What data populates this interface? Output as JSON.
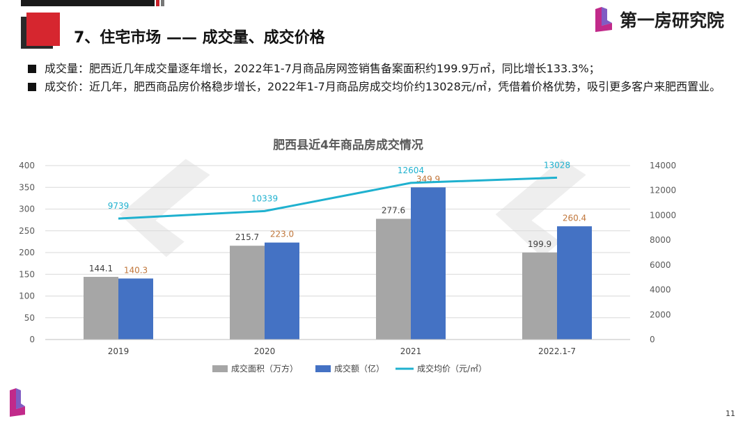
{
  "header": {
    "title": "7、住宅市场 —— 成交量、成交价格",
    "brand_name": "第一房研究院"
  },
  "bullets": [
    {
      "text": "成交量：肥西近几年成交量逐年增长，2022年1-7月商品房网签销售备案面积约199.9万㎡，同比增长133.3%；"
    },
    {
      "text": "成交价：近几年，肥西商品房价格稳步增长，2022年1-7月商品房成交均价约13028元/㎡，凭借着价格优势，吸引更多客户来肥西置业。"
    }
  ],
  "page_number": "11",
  "colors": {
    "accent": "#d6262f",
    "gray_bar": "#a6a6a6",
    "blue_bar": "#4472c4",
    "line": "#1fb1cf"
  },
  "chart_data": {
    "type": "bar",
    "title": "肥西县近4年商品房成交情况",
    "categories": [
      "2019",
      "2020",
      "2021",
      "2022.1-7"
    ],
    "series": [
      {
        "name": "成交面积（万方）",
        "type": "bar",
        "axis": "left",
        "values": [
          144.1,
          215.7,
          277.6,
          199.9
        ],
        "labels": [
          "144.1",
          "215.7",
          "277.6",
          "199.9"
        ]
      },
      {
        "name": "成交额（亿）",
        "type": "bar",
        "axis": "left",
        "values": [
          140.3,
          223.0,
          349.9,
          260.4
        ],
        "labels": [
          "140.3",
          "223.0",
          "349.9",
          "260.4"
        ]
      },
      {
        "name": "成交均价（元/㎡）",
        "type": "line",
        "axis": "right",
        "values": [
          9739,
          10339,
          12604,
          13028
        ],
        "labels": [
          "9739",
          "10339",
          "12604",
          "13028"
        ]
      }
    ],
    "y_left": {
      "min": 0,
      "max": 400,
      "step": 50,
      "ticks": [
        "0",
        "50",
        "100",
        "150",
        "200",
        "250",
        "300",
        "350",
        "400"
      ]
    },
    "y_right": {
      "min": 0,
      "max": 14000,
      "step": 2000,
      "ticks": [
        "0",
        "2000",
        "4000",
        "6000",
        "8000",
        "10000",
        "12000",
        "14000"
      ]
    },
    "grid": true,
    "legend_position": "bottom"
  }
}
